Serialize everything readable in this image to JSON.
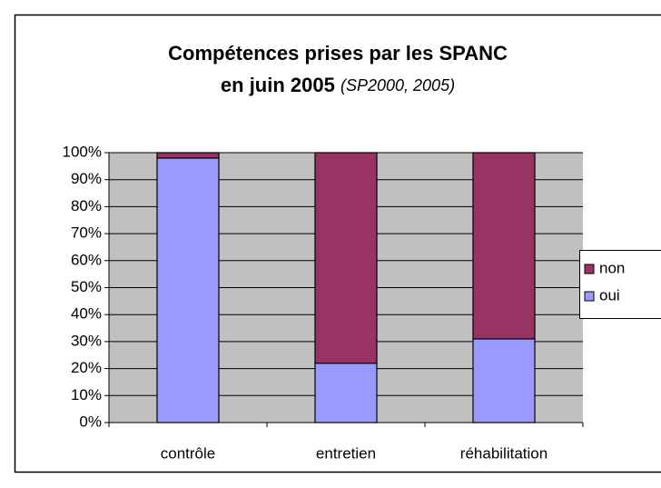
{
  "chart_data": {
    "type": "stacked_bar",
    "title": [
      "Compétences prises par les SPANC",
      "en juin 2005"
    ],
    "source": "(SP2000, 2005)",
    "categories": [
      "contrôle",
      "entretien",
      "réhabilitation"
    ],
    "series": [
      {
        "name": "oui",
        "color": "#9999ff",
        "values": [
          98,
          22,
          31
        ]
      },
      {
        "name": "non",
        "color": "#993366",
        "values": [
          2,
          78,
          69
        ]
      }
    ],
    "ylim": [
      0,
      100
    ],
    "yticks": [
      {
        "value": 0,
        "label": "0%"
      },
      {
        "value": 10,
        "label": "10%"
      },
      {
        "value": 20,
        "label": "20%"
      },
      {
        "value": 30,
        "label": "30%"
      },
      {
        "value": 40,
        "label": "40%"
      },
      {
        "value": 50,
        "label": "50%"
      },
      {
        "value": 60,
        "label": "60%"
      },
      {
        "value": 70,
        "label": "70%"
      },
      {
        "value": 80,
        "label": "80%"
      },
      {
        "value": 90,
        "label": "90%"
      },
      {
        "value": 100,
        "label": "100%"
      }
    ],
    "grid": true,
    "legend": "right",
    "plot_background": "#c0c0c0"
  }
}
